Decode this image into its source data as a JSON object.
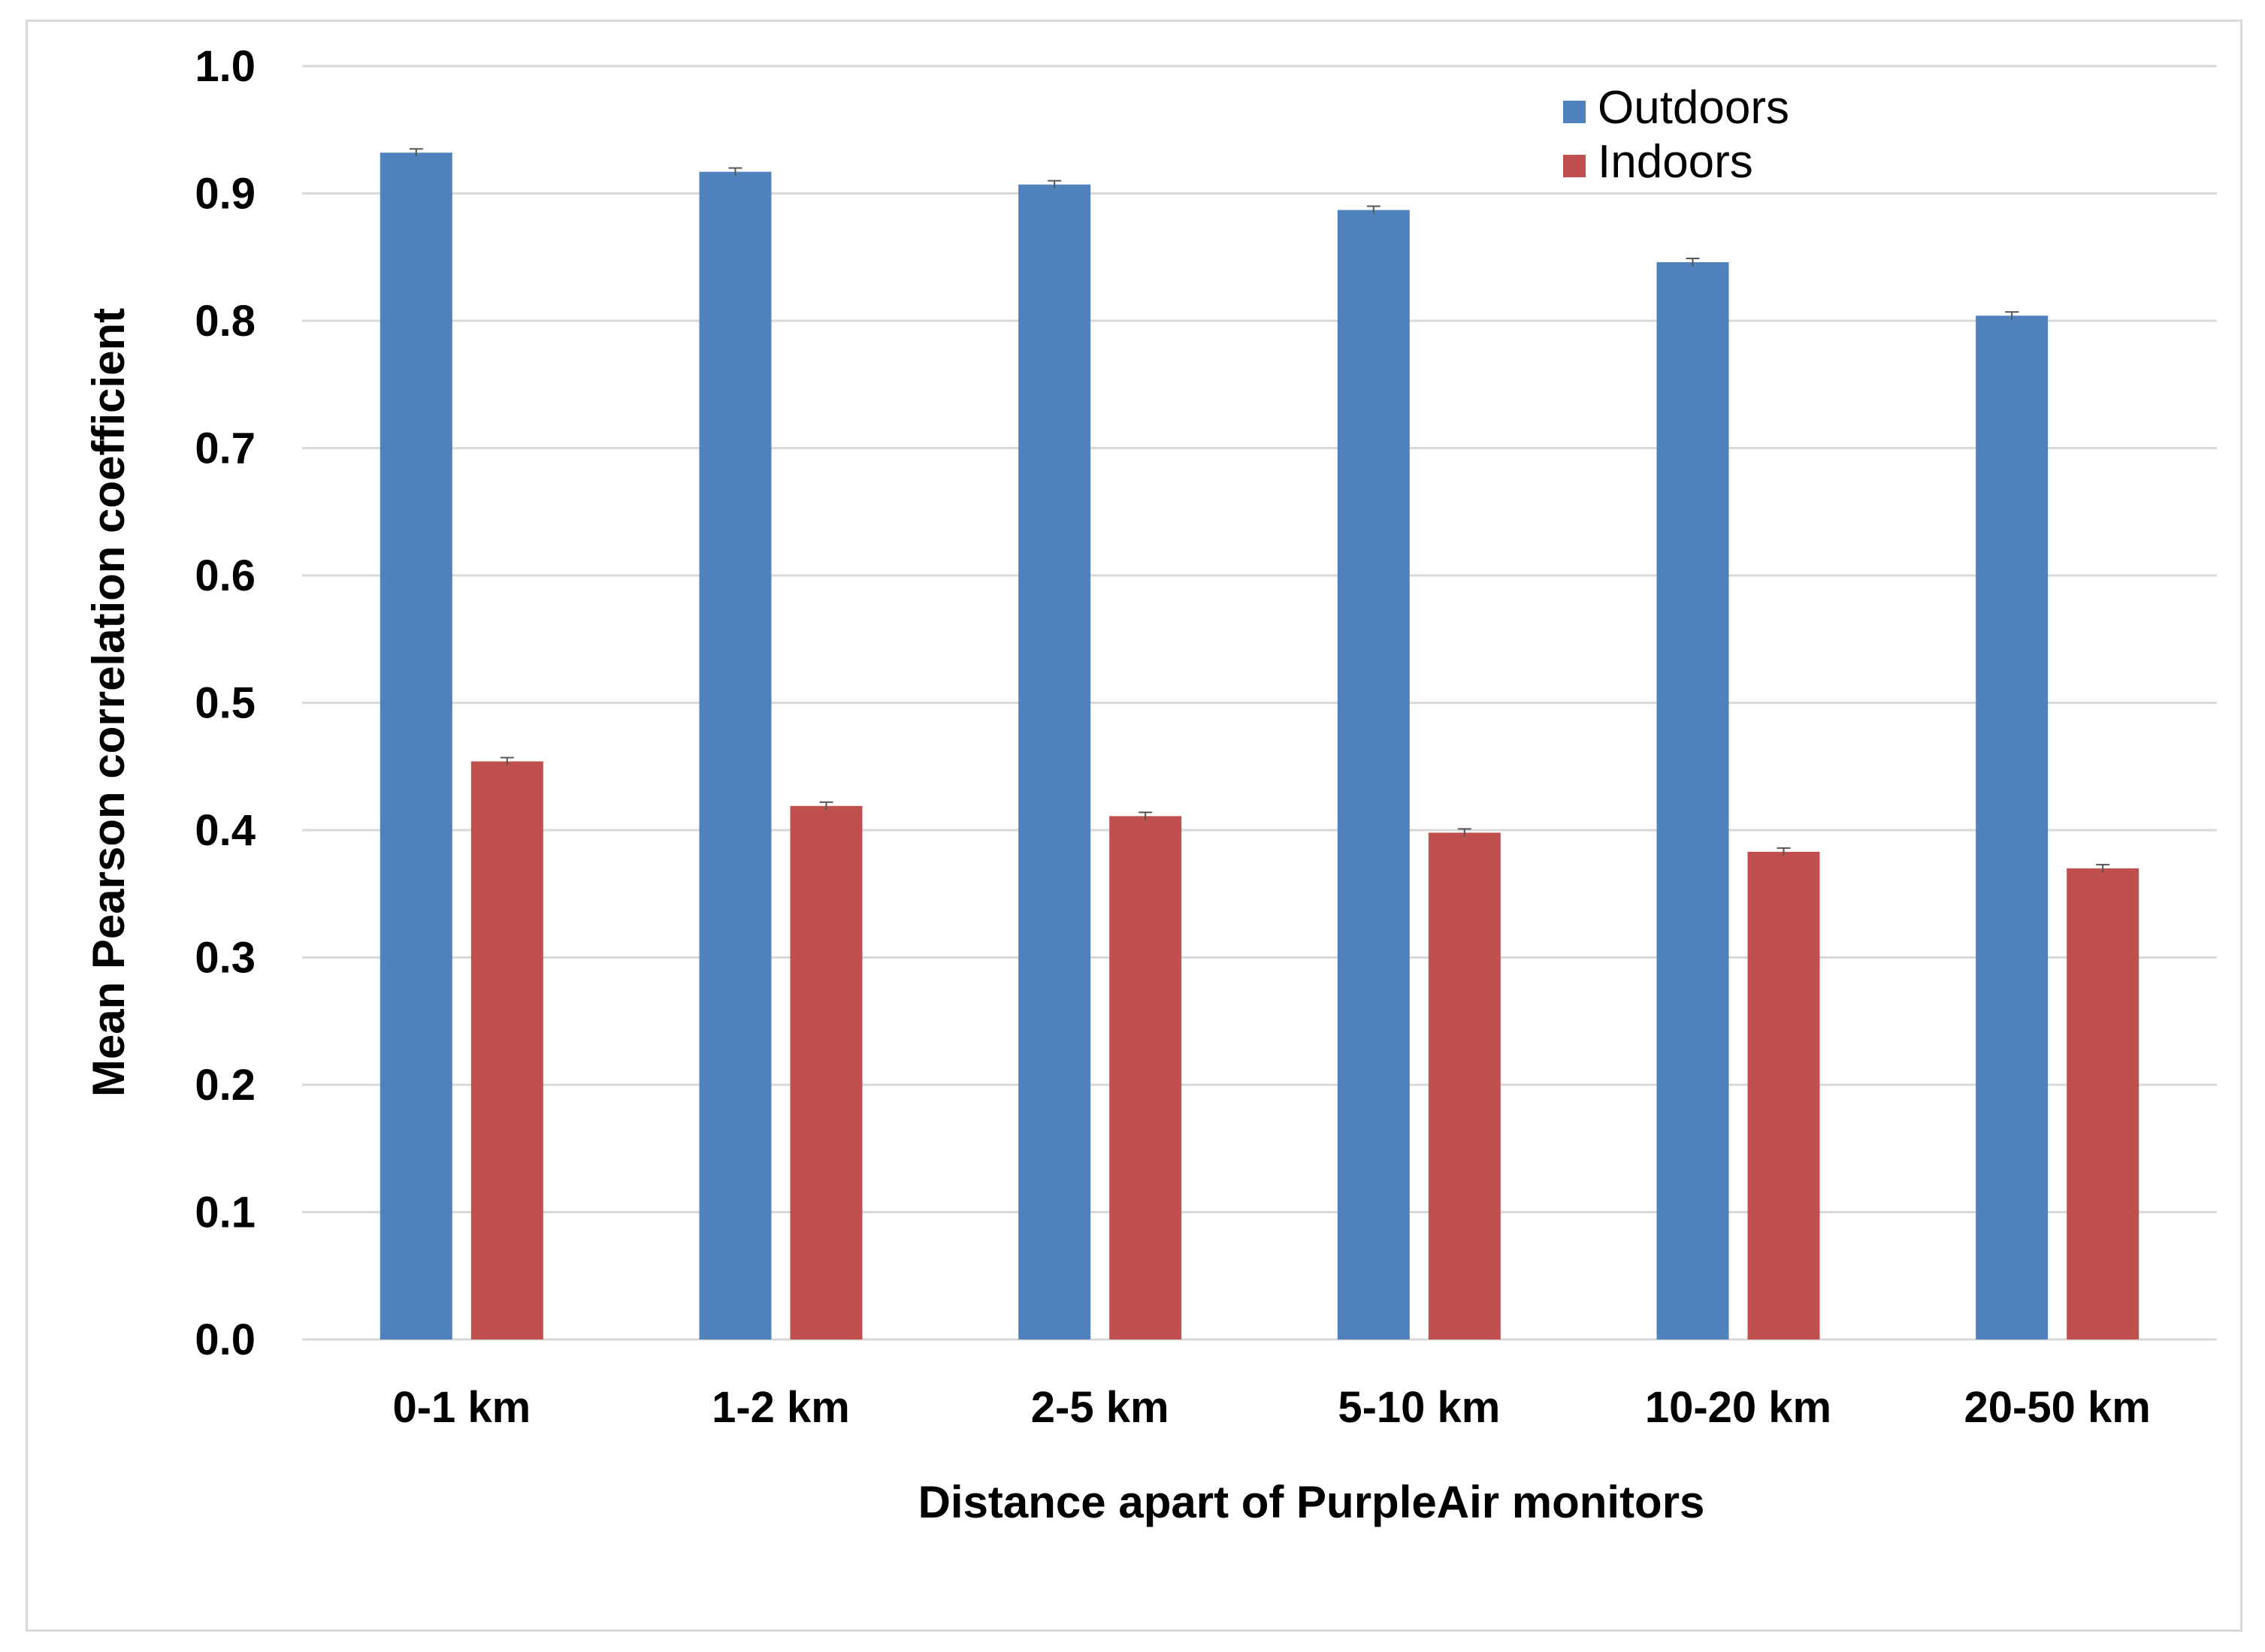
{
  "chart_data": {
    "type": "bar",
    "title": "",
    "xlabel": "Distance apart of PurpleAir monitors",
    "ylabel": "Mean Pearson correlation coefficient",
    "ylim": [
      0,
      1.0
    ],
    "yticks": [
      "0.0",
      "0.1",
      "0.2",
      "0.3",
      "0.4",
      "0.5",
      "0.6",
      "0.7",
      "0.8",
      "0.9",
      "1.0"
    ],
    "grid": true,
    "legend_position": "top-right",
    "categories": [
      "0-1 km",
      "1-2 km",
      "2-5 km",
      "5-10 km",
      "10-20 km",
      "20-50 km"
    ],
    "series": [
      {
        "name": "Outdoors",
        "color": "#4f81bd",
        "values": [
          0.932,
          0.917,
          0.907,
          0.887,
          0.846,
          0.804
        ]
      },
      {
        "name": "Indoors",
        "color": "#c0504d",
        "values": [
          0.454,
          0.419,
          0.411,
          0.398,
          0.383,
          0.37
        ]
      }
    ]
  }
}
